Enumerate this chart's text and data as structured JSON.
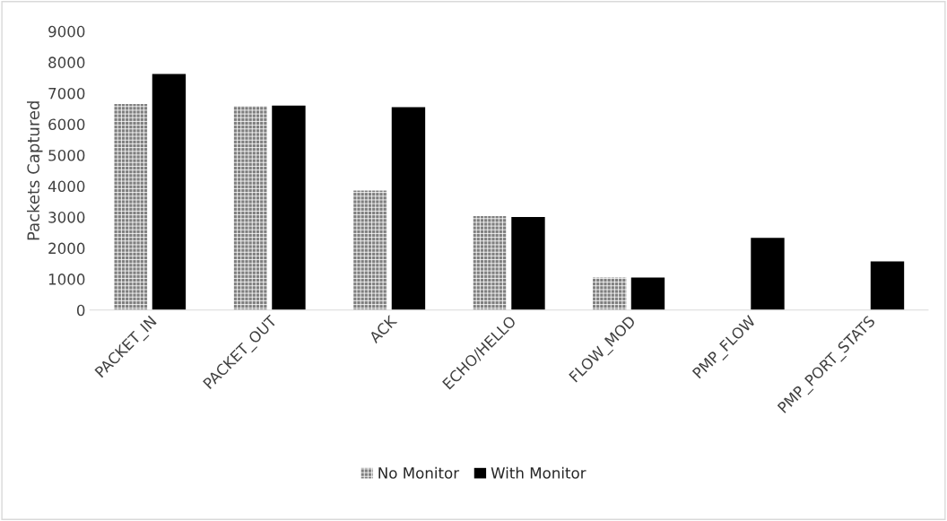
{
  "chart_data": {
    "type": "bar",
    "ylabel": "Packets Captured",
    "categories": [
      "PACKET_IN",
      "PACKET_OUT",
      "ACK",
      "ECHO/HELLO",
      "FLOW_MOD",
      "PMP_FLOW",
      "PMP_PORT_STATS"
    ],
    "series": [
      {
        "name": "No Monitor",
        "color": "#7f7f7f",
        "values": [
          6650,
          6580,
          3860,
          3030,
          1050,
          null,
          null
        ]
      },
      {
        "name": "With Monitor",
        "color": "#000000",
        "values": [
          7620,
          6600,
          6550,
          3000,
          1050,
          2330,
          1570
        ]
      }
    ],
    "ylim": [
      0,
      9000
    ],
    "yticks": [
      0,
      1000,
      2000,
      3000,
      4000,
      5000,
      6000,
      7000,
      8000,
      9000
    ],
    "grid": false,
    "legend": "bottom"
  }
}
